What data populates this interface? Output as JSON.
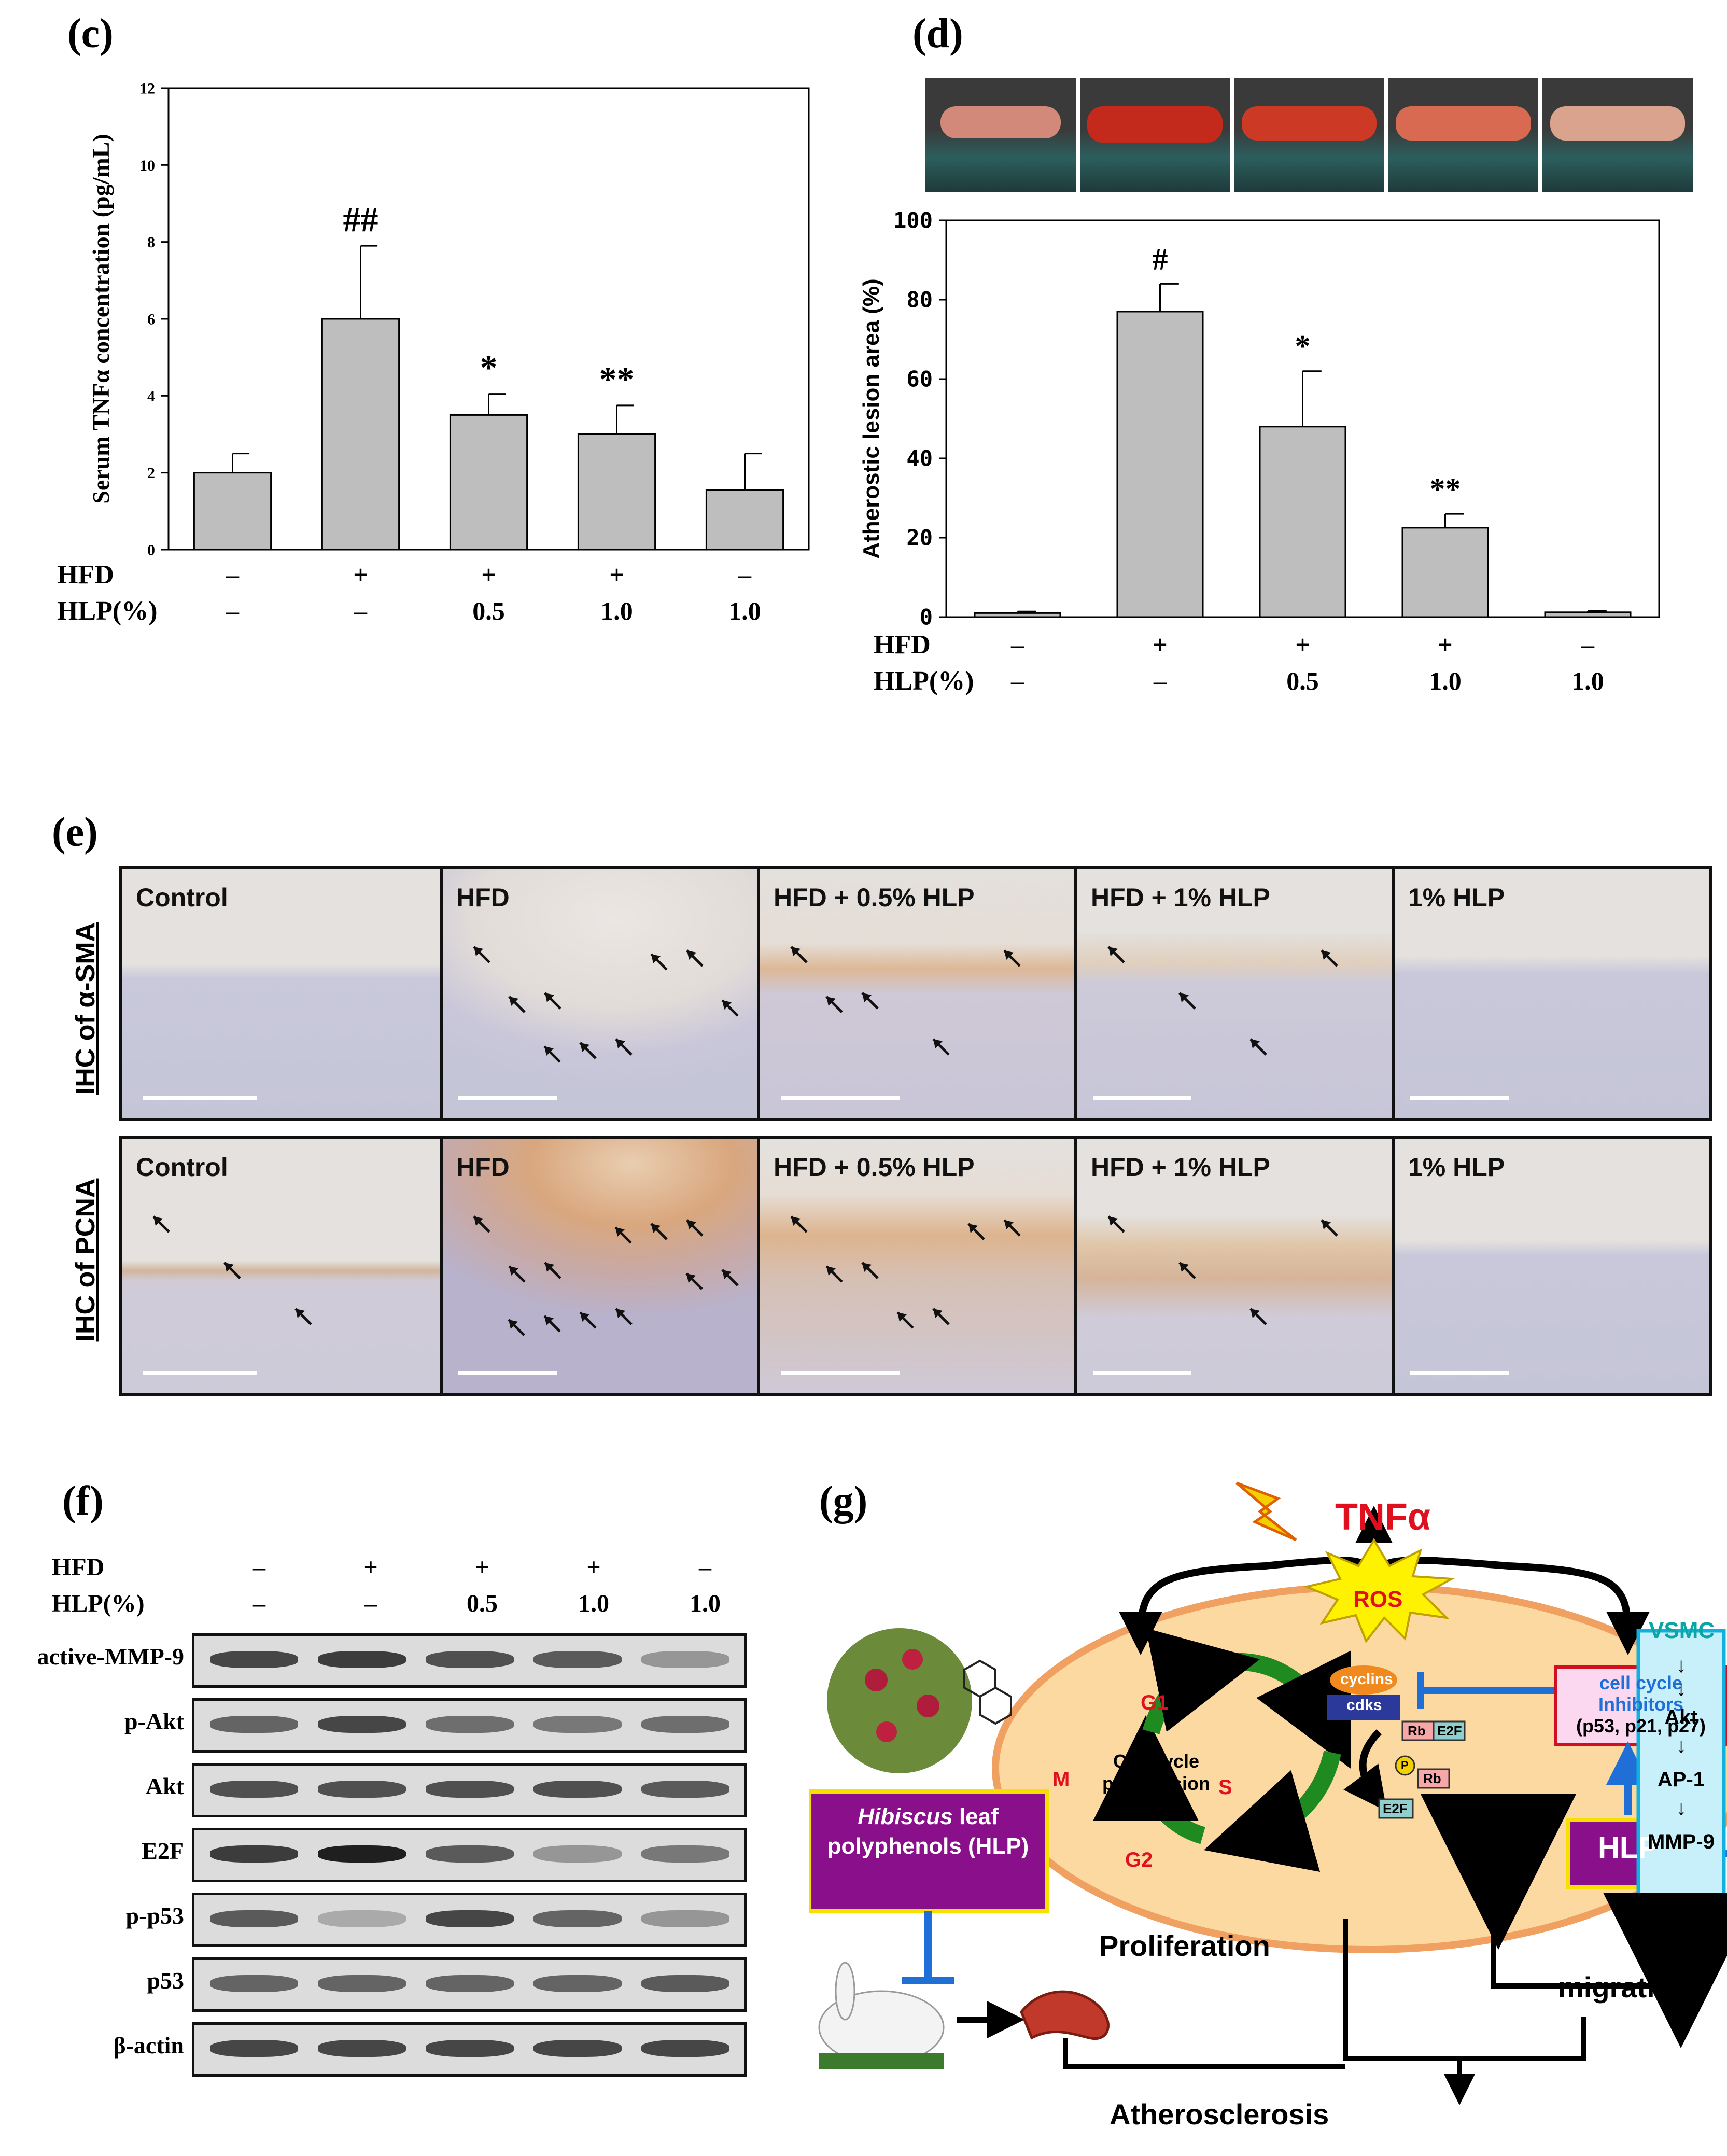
{
  "panels": {
    "c": "(c)",
    "d": "(d)",
    "e": "(e)",
    "f": "(f)",
    "g": "(g)"
  },
  "chart_c": {
    "chart_data": {
      "type": "bar",
      "categories": [
        "1",
        "2",
        "3",
        "4",
        "5"
      ],
      "values": [
        2.0,
        6.0,
        3.5,
        3.0,
        1.55
      ],
      "errors": [
        0.5,
        1.9,
        0.55,
        0.75,
        0.95
      ],
      "significance": [
        "",
        "##",
        "*",
        "**",
        ""
      ],
      "ylabel": "Serum TNFα concentration (pg/mL)",
      "ylim": [
        0,
        12
      ],
      "yticks": [
        "0",
        "2",
        "4",
        "6",
        "8",
        "10",
        "12"
      ],
      "hfd": [
        "–",
        "+",
        "+",
        "+",
        "–"
      ],
      "hlp": [
        "–",
        "–",
        "0.5",
        "1.0",
        "1.0"
      ],
      "row_labels": {
        "hfd": "HFD",
        "hlp": "HLP(%)"
      }
    }
  },
  "chart_d": {
    "chart_data": {
      "type": "bar",
      "categories": [
        "1",
        "2",
        "3",
        "4",
        "5"
      ],
      "values": [
        1.0,
        77.0,
        48.0,
        22.5,
        1.2
      ],
      "errors": [
        0.4,
        7.0,
        14.0,
        3.5,
        0.3
      ],
      "significance": [
        "",
        "#",
        "*",
        "**",
        ""
      ],
      "ylabel": "Atherostic lesion area (%)",
      "ylim": [
        0,
        100
      ],
      "yticks": [
        "0",
        "20",
        "40",
        "60",
        "80",
        "100"
      ],
      "hfd": [
        "–",
        "+",
        "+",
        "+",
        "–"
      ],
      "hlp": [
        "–",
        "–",
        "0.5",
        "1.0",
        "1.0"
      ],
      "row_labels": {
        "hfd": "HFD",
        "hlp": "HLP(%)"
      }
    }
  },
  "ihc": {
    "row1_label": "IHC of α-SMA",
    "row2_label": "IHC of PCNA",
    "row1": [
      "Control",
      "HFD",
      "HFD + 0.5% HLP",
      "HFD + 1% HLP",
      "1% HLP"
    ],
    "row2": [
      "Control",
      "HFD",
      "HFD + 0.5% HLP",
      "HFD + 1% HLP",
      "1% HLP"
    ]
  },
  "western": {
    "hfd_label": "HFD",
    "hlp_label": "HLP(%)",
    "hfd": [
      "–",
      "+",
      "+",
      "+",
      "–"
    ],
    "hlp": [
      "–",
      "–",
      "0.5",
      "1.0",
      "1.0"
    ],
    "rows": [
      "active-MMP-9",
      "p-Akt",
      "Akt",
      "E2F",
      "p-p53",
      "p53",
      "β-actin"
    ]
  },
  "diagram": {
    "tnf": "TNFα",
    "ros": "ROS",
    "vsmc": "VSMC",
    "cyclins": "cyclins",
    "cdks": "cdks",
    "rb": "Rb",
    "e2f": "E2F",
    "p": "P",
    "g1": "G1",
    "s": "S",
    "g2": "G2",
    "m": "M",
    "cell_cycle": "Cell cycle progression",
    "inhibitors_1": "cell cycle",
    "inhibitors_2": "Inhibitors",
    "inhibitors_3": "(p53, p21, p27)",
    "hlp": "HLP",
    "hlp_box_1": "Hibiscus",
    "hlp_box_1b": " leaf",
    "hlp_box_2": "polyphenols (HLP)",
    "akt": "Akt",
    "ap1": "AP-1",
    "mmp9": "MMP-9",
    "proliferation": "Proliferation",
    "migration": "migration",
    "atherosclerosis": "Atherosclerosis"
  }
}
